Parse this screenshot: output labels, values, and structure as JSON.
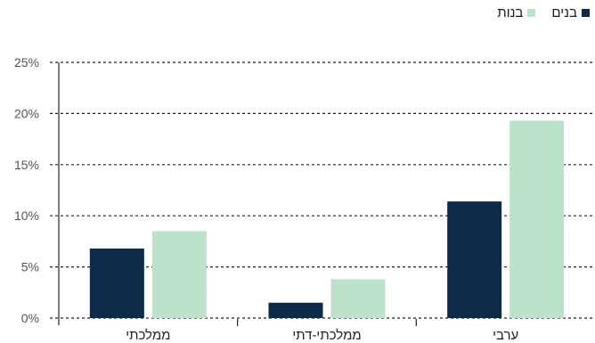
{
  "chart_data": {
    "type": "bar",
    "categories": [
      "ממלכתי",
      "ממלכתי-דתי",
      "ערבי"
    ],
    "series": [
      {
        "name": "בנים",
        "values": [
          6.8,
          1.5,
          11.4
        ],
        "color": "#0c2a4a"
      },
      {
        "name": "בנות",
        "values": [
          8.5,
          3.8,
          19.3
        ],
        "color": "#bde2cc"
      }
    ],
    "y_ticks": [
      "0%",
      "5%",
      "10%",
      "15%",
      "20%",
      "25%"
    ],
    "ylim": [
      0,
      25
    ],
    "grid": "horizontal dashed",
    "legend_position": "top-right",
    "title": "",
    "xlabel": "",
    "ylabel": ""
  }
}
